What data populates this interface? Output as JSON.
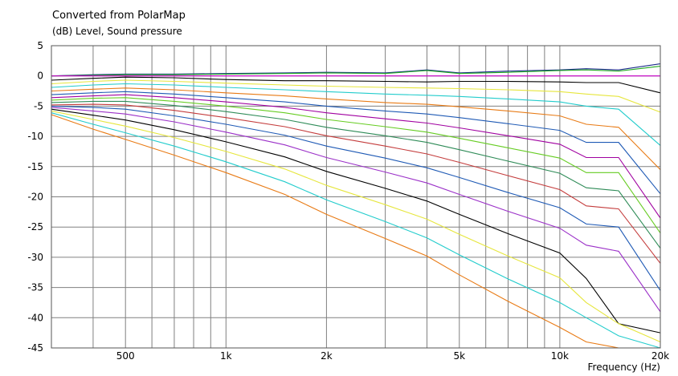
{
  "chart_data": {
    "type": "line",
    "title": "Converted from PolarMap",
    "ylabel": "(dB)  Level, Sound pressure",
    "xlabel": "Frequency  (Hz)",
    "x_scale": "log",
    "xlim": [
      300,
      20000
    ],
    "ylim": [
      -45,
      5
    ],
    "grid": true,
    "x_tick_labels": [
      {
        "value": 500,
        "label": "500"
      },
      {
        "value": 1000,
        "label": "1k"
      },
      {
        "value": 2000,
        "label": "2k"
      },
      {
        "value": 5000,
        "label": "5k"
      },
      {
        "value": 10000,
        "label": "10k"
      },
      {
        "value": 20000,
        "label": "20k"
      }
    ],
    "y_ticks": [
      5,
      0,
      -5,
      -10,
      -15,
      -20,
      -25,
      -30,
      -35,
      -40,
      -45
    ],
    "x": [
      300,
      400,
      500,
      700,
      1000,
      1500,
      2000,
      3000,
      4000,
      5000,
      7000,
      10000,
      12000,
      15000,
      20000
    ],
    "series": [
      {
        "color": "#1a2a8a",
        "values": [
          0,
          0.2,
          0.3,
          0.3,
          0.4,
          0.5,
          0.6,
          0.5,
          1.0,
          0.5,
          0.8,
          1.0,
          1.2,
          1.0,
          2.0
        ]
      },
      {
        "color": "#22aa22",
        "values": [
          0,
          0.1,
          0.2,
          0.2,
          0.3,
          0.4,
          0.5,
          0.4,
          0.9,
          0.4,
          0.6,
          0.9,
          1.0,
          0.8,
          1.6
        ]
      },
      {
        "color": "#cc00cc",
        "values": [
          0,
          0,
          0,
          0,
          0,
          0,
          0,
          0,
          0,
          0,
          0,
          0,
          0,
          0,
          0
        ]
      },
      {
        "color": "#000000",
        "values": [
          -0.7,
          -0.4,
          -0.2,
          -0.3,
          -0.6,
          -0.8,
          -0.8,
          -0.9,
          -1.0,
          -0.9,
          -0.9,
          -1.0,
          -1.1,
          -1.1,
          -2.8
        ]
      },
      {
        "color": "#e6e63c",
        "values": [
          -1.3,
          -0.9,
          -0.7,
          -0.9,
          -1.2,
          -1.5,
          -1.7,
          -1.9,
          -2.0,
          -2.1,
          -2.3,
          -2.6,
          -3.0,
          -3.4,
          -6.0
        ]
      },
      {
        "color": "#22cccc",
        "values": [
          -1.9,
          -1.5,
          -1.3,
          -1.5,
          -1.9,
          -2.3,
          -2.6,
          -3.0,
          -3.2,
          -3.4,
          -3.8,
          -4.3,
          -5.0,
          -5.5,
          -11.5
        ]
      },
      {
        "color": "#e87a14",
        "values": [
          -2.5,
          -2.2,
          -2.0,
          -2.3,
          -2.8,
          -3.3,
          -3.8,
          -4.4,
          -4.7,
          -5.1,
          -5.8,
          -6.6,
          -8.0,
          -8.5,
          -15.5
        ]
      },
      {
        "color": "#1f5ab5",
        "values": [
          -3.1,
          -2.8,
          -2.6,
          -3.0,
          -3.6,
          -4.3,
          -5.0,
          -5.8,
          -6.3,
          -6.9,
          -7.9,
          -9.0,
          -11.0,
          -11.0,
          -19.5
        ]
      },
      {
        "color": "#a000a0",
        "values": [
          -3.6,
          -3.3,
          -3.1,
          -3.6,
          -4.3,
          -5.2,
          -6.1,
          -7.1,
          -7.8,
          -8.6,
          -9.9,
          -11.3,
          -13.5,
          -13.5,
          -23.5
        ]
      },
      {
        "color": "#66cc22",
        "values": [
          -4.0,
          -3.7,
          -3.6,
          -4.2,
          -5.0,
          -6.1,
          -7.2,
          -8.4,
          -9.3,
          -10.3,
          -11.9,
          -13.6,
          -16.0,
          -16.0,
          -26.0
        ]
      },
      {
        "color": "#2e8b57",
        "values": [
          -4.4,
          -4.2,
          -4.2,
          -4.9,
          -5.9,
          -7.2,
          -8.5,
          -9.9,
          -11.0,
          -12.2,
          -14.1,
          -16.1,
          -18.5,
          -19.0,
          -28.5
        ]
      },
      {
        "color": "#c43c3c",
        "values": [
          -4.8,
          -4.7,
          -4.8,
          -5.7,
          -6.9,
          -8.4,
          -9.9,
          -11.6,
          -12.9,
          -14.3,
          -16.5,
          -18.8,
          -21.5,
          -22.0,
          -31.0
        ]
      },
      {
        "color": "#1f5ab5",
        "values": [
          -5.0,
          -5.2,
          -5.5,
          -6.6,
          -8.0,
          -9.8,
          -11.6,
          -13.6,
          -15.2,
          -16.8,
          -19.3,
          -21.8,
          -24.5,
          -25.0,
          -35.5
        ]
      },
      {
        "color": "#9b30c8",
        "values": [
          -5.2,
          -5.8,
          -6.3,
          -7.6,
          -9.3,
          -11.4,
          -13.5,
          -15.9,
          -17.7,
          -19.6,
          -22.4,
          -25.2,
          -28.0,
          -29.0,
          -39.0
        ]
      },
      {
        "color": "#000000",
        "values": [
          -5.5,
          -6.5,
          -7.3,
          -8.9,
          -10.9,
          -13.4,
          -15.8,
          -18.6,
          -20.7,
          -22.9,
          -26.1,
          -29.3,
          -33.5,
          -41.0,
          -42.5
        ]
      },
      {
        "color": "#e6e63c",
        "values": [
          -5.8,
          -7.2,
          -8.3,
          -10.2,
          -12.5,
          -15.4,
          -18.1,
          -21.3,
          -23.7,
          -26.2,
          -29.8,
          -33.4,
          -37.5,
          -41.0,
          -44.0
        ]
      },
      {
        "color": "#22cccc",
        "values": [
          -6.1,
          -8.0,
          -9.4,
          -11.6,
          -14.2,
          -17.5,
          -20.5,
          -24.1,
          -26.8,
          -29.6,
          -33.6,
          -37.5,
          -40.0,
          -43.0,
          -45.0
        ]
      },
      {
        "color": "#e87a14",
        "values": [
          -6.4,
          -8.8,
          -10.5,
          -13.1,
          -16.0,
          -19.6,
          -22.9,
          -26.9,
          -29.8,
          -32.9,
          -37.3,
          -41.6,
          -44.0,
          -45.0,
          -45.0
        ]
      }
    ]
  }
}
